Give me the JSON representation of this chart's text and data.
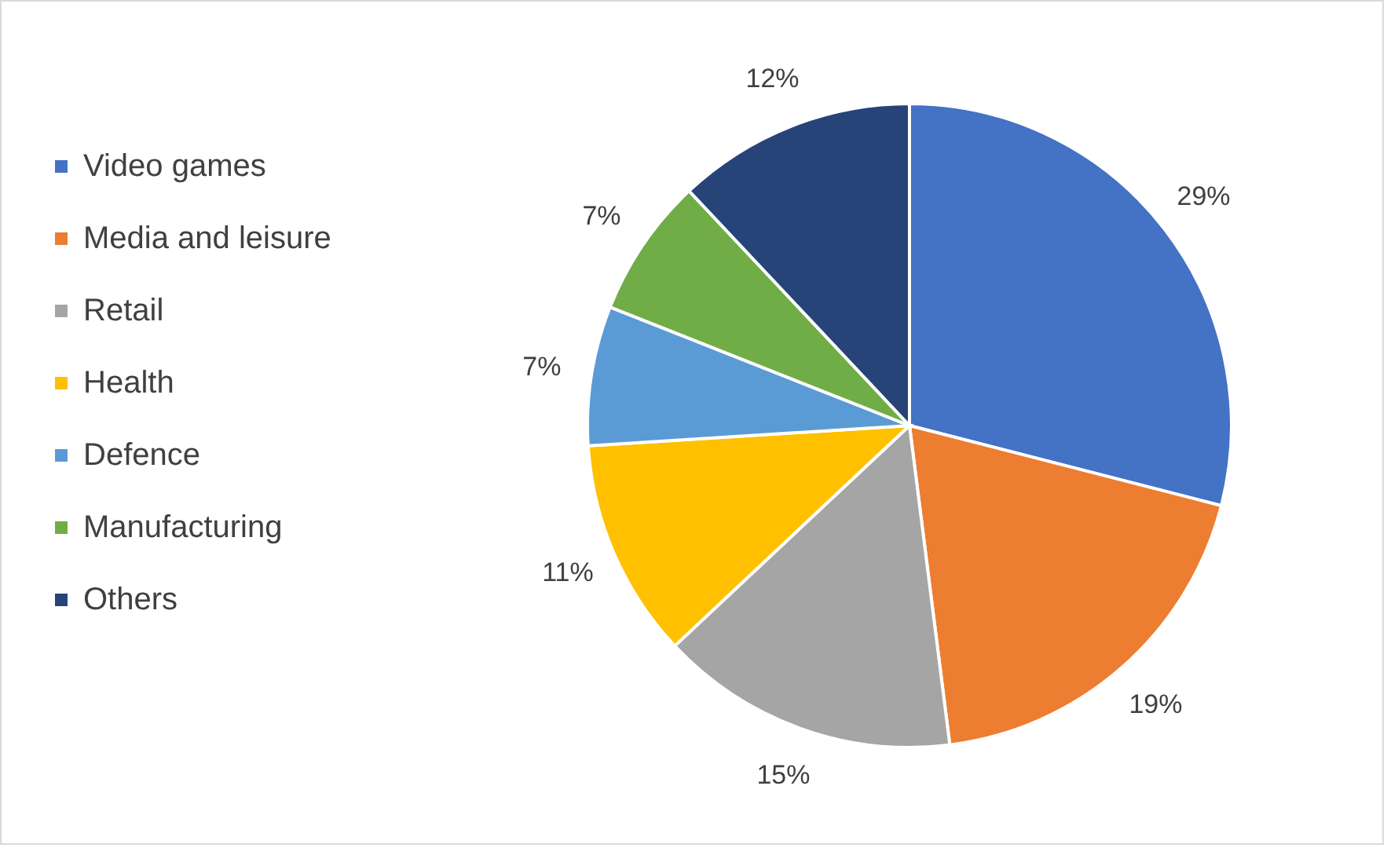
{
  "chart_data": {
    "type": "pie",
    "categories": [
      "Video games",
      "Media and leisure",
      "Retail",
      "Health",
      "Defence",
      "Manufacturing",
      "Others"
    ],
    "values": [
      29,
      19,
      15,
      11,
      7,
      7,
      12
    ],
    "colors": [
      "#4472c4",
      "#ed7d31",
      "#a5a5a5",
      "#ffc000",
      "#5b9bd5",
      "#70ad47",
      "#264478"
    ],
    "value_labels": [
      "29%",
      "19%",
      "15%",
      "11%",
      "7%",
      "7%",
      "12%"
    ],
    "legend": "left"
  }
}
